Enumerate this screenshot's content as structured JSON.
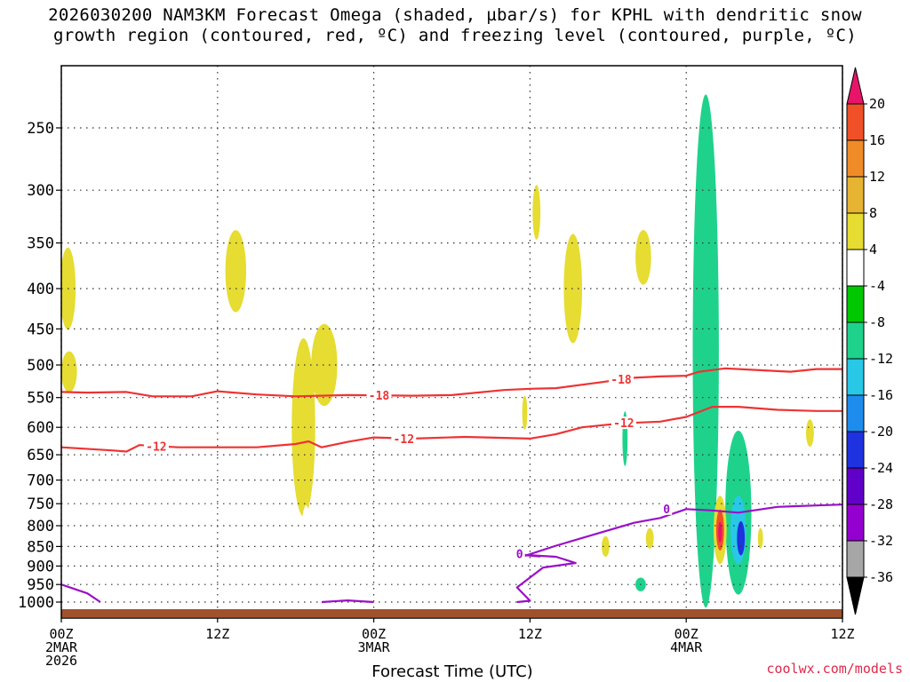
{
  "title": {
    "line1": "2026030200 NAM3KM Forecast Omega (shaded, µbar/s) for KPHL with dendritic snow",
    "line2": "growth region (contoured, red, ºC) and freezing level (contoured, purple, ºC)"
  },
  "credit": "coolwx.com/models",
  "colors": {
    "dgz": "#ee3333",
    "freezing": "#9a10c8",
    "ground": "#a0522d",
    "grid": "#333333"
  },
  "chart_data": {
    "type": "heatmap",
    "title": "2026030200 NAM3KM Forecast Omega (shaded, µbar/s) for KPHL with dendritic snow growth region (contoured, red, ºC) and freezing level (contoured, purple, ºC)",
    "xlabel": "Forecast Time (UTC)",
    "ylabel": "",
    "x_unit": "forecast hour",
    "xlim": [
      0,
      60
    ],
    "y_unit": "hPa",
    "ylim": [
      1000,
      200
    ],
    "y_scale": "log",
    "y_ticks": [
      250,
      300,
      350,
      400,
      450,
      500,
      550,
      600,
      650,
      700,
      750,
      800,
      850,
      900,
      950,
      1000
    ],
    "x_ticks": [
      {
        "hour": 0,
        "lines": [
          "00Z",
          "2MAR",
          "2026"
        ]
      },
      {
        "hour": 12,
        "lines": [
          "12Z"
        ]
      },
      {
        "hour": 24,
        "lines": [
          "00Z",
          "3MAR"
        ]
      },
      {
        "hour": 36,
        "lines": [
          "12Z"
        ]
      },
      {
        "hour": 48,
        "lines": [
          "00Z",
          "4MAR"
        ]
      },
      {
        "hour": 60,
        "lines": [
          "12Z"
        ]
      }
    ],
    "grid": true,
    "colorbar": {
      "levels": [
        -36,
        -32,
        -28,
        -24,
        -20,
        -16,
        -12,
        -8,
        -4,
        4,
        8,
        12,
        16,
        20
      ],
      "colors": [
        "#a6a6a6",
        "#9400d0",
        "#6000c8",
        "#1e32e0",
        "#1e8ced",
        "#28c8e6",
        "#1ed28c",
        "#00c800",
        "#ffffff",
        "#e6dc32",
        "#e6b432",
        "#f08c28",
        "#f05028",
        "#e8146a"
      ]
    },
    "series": [
      {
        "name": "dendritic snow growth region",
        "kind": "contour",
        "level_labels": [
          "-18",
          "-12"
        ],
        "lines": [
          {
            "level": -18,
            "points": [
              [
                0,
                541
              ],
              [
                2,
                542
              ],
              [
                5,
                541
              ],
              [
                7,
                548
              ],
              [
                10,
                548
              ],
              [
                12,
                540
              ],
              [
                15,
                545
              ],
              [
                18,
                548
              ],
              [
                22,
                546
              ],
              [
                27,
                547
              ],
              [
                30,
                546
              ],
              [
                34,
                538
              ],
              [
                36,
                536
              ],
              [
                38,
                535
              ],
              [
                41,
                527
              ],
              [
                44,
                519
              ],
              [
                46,
                517
              ],
              [
                48,
                516
              ],
              [
                49,
                510
              ],
              [
                51,
                505
              ],
              [
                53,
                507
              ],
              [
                56,
                510
              ],
              [
                58,
                506
              ],
              [
                60,
                506
              ]
            ],
            "labels": [
              [
                24.4,
                546
              ],
              [
                43.0,
                521
              ]
            ]
          },
          {
            "level": -12,
            "points": [
              [
                0,
                636
              ],
              [
                4,
                642
              ],
              [
                5,
                644
              ],
              [
                6,
                632
              ],
              [
                9,
                636
              ],
              [
                12,
                636
              ],
              [
                15,
                636
              ],
              [
                18,
                630
              ],
              [
                19,
                625
              ],
              [
                20,
                636
              ],
              [
                22,
                626
              ],
              [
                24,
                618
              ],
              [
                27,
                620
              ],
              [
                31,
                617
              ],
              [
                36,
                620
              ],
              [
                38,
                612
              ],
              [
                40,
                600
              ],
              [
                43,
                593
              ],
              [
                46,
                590
              ],
              [
                48,
                582
              ],
              [
                50,
                565
              ],
              [
                52,
                565
              ],
              [
                55,
                570
              ],
              [
                58,
                572
              ],
              [
                60,
                572
              ]
            ],
            "labels": [
              [
                7.3,
                634
              ],
              [
                26.3,
                620
              ],
              [
                43.2,
                592
              ]
            ]
          }
        ]
      },
      {
        "name": "freezing level",
        "kind": "contour",
        "level_labels": [
          "0"
        ],
        "lines": [
          {
            "level": 0,
            "points": [
              [
                0,
                950
              ],
              [
                2,
                975
              ],
              [
                3,
                1000
              ]
            ],
            "labels": []
          },
          {
            "level": 0,
            "points": [
              [
                20,
                1000
              ],
              [
                22,
                995
              ],
              [
                24,
                1000
              ]
            ],
            "labels": []
          },
          {
            "level": 0,
            "points": [
              [
                35,
                880
              ],
              [
                38,
                848
              ],
              [
                41,
                820
              ],
              [
                44,
                793
              ],
              [
                46,
                782
              ],
              [
                48,
                762
              ],
              [
                50,
                765
              ],
              [
                52,
                770
              ],
              [
                55,
                757
              ],
              [
                58,
                754
              ],
              [
                60,
                752
              ]
            ],
            "labels": [
              [
                46.5,
                761
              ]
            ]
          },
          {
            "level": 0,
            "points": [
              [
                35,
                870
              ],
              [
                38,
                876
              ],
              [
                39.5,
                892
              ],
              [
                37,
                904
              ],
              [
                35,
                958
              ],
              [
                36,
                996
              ],
              [
                35,
                1000
              ]
            ],
            "labels": []
          },
          {
            "level": 0,
            "points": [
              [
                35,
                870
              ],
              [
                36.8,
                875
              ]
            ],
            "labels": [
              [
                35.2,
                868
              ]
            ]
          }
        ]
      },
      {
        "name": "omega",
        "kind": "filled",
        "cells": [
          {
            "level": -4,
            "x": 8.2,
            "p": 330,
            "w": 1.0,
            "h": 0.18
          },
          {
            "level": 4,
            "x": 13.4,
            "p": 380,
            "w": 0.8,
            "h": 0.12
          },
          {
            "level": -4,
            "x": 14.9,
            "p": 460,
            "w": 0.4,
            "h": 0.1
          },
          {
            "level": 4,
            "x": 0.5,
            "p": 400,
            "w": 0.6,
            "h": 0.12
          },
          {
            "level": 4,
            "x": 0.6,
            "p": 510,
            "w": 0.6,
            "h": 0.06
          },
          {
            "level": -4,
            "x": 18.3,
            "p": 410,
            "w": 1.3,
            "h": 0.32
          },
          {
            "level": -4,
            "x": 21.5,
            "p": 400,
            "w": 0.5,
            "h": 0.08
          },
          {
            "level": 4,
            "x": 20.2,
            "p": 500,
            "w": 1.0,
            "h": 0.12
          },
          {
            "level": 4,
            "x": 18.6,
            "p": 600,
            "w": 0.9,
            "h": 0.26
          },
          {
            "level": -4,
            "x": 18.8,
            "p": 850,
            "w": 0.4,
            "h": 0.12
          },
          {
            "level": -4,
            "x": 23.5,
            "p": 980,
            "w": 1.2,
            "h": 0.05
          },
          {
            "level": 4,
            "x": 36.5,
            "p": 320,
            "w": 0.3,
            "h": 0.08
          },
          {
            "level": 4,
            "x": 39.3,
            "p": 400,
            "w": 0.7,
            "h": 0.16
          },
          {
            "level": -4,
            "x": 42.2,
            "p": 400,
            "w": 0.5,
            "h": 0.12
          },
          {
            "level": 4,
            "x": 44.7,
            "p": 365,
            "w": 0.6,
            "h": 0.08
          },
          {
            "level": 4,
            "x": 35.6,
            "p": 575,
            "w": 0.2,
            "h": 0.05
          },
          {
            "level": -4,
            "x": 42.0,
            "p": 560,
            "w": 0.7,
            "h": 0.2
          },
          {
            "level": -4,
            "x": 43.3,
            "p": 600,
            "w": 0.7,
            "h": 0.2
          },
          {
            "level": -12,
            "x": 43.3,
            "p": 620,
            "w": 0.2,
            "h": 0.08
          },
          {
            "level": -4,
            "x": 45.5,
            "p": 630,
            "w": 0.5,
            "h": 0.1
          },
          {
            "level": -4,
            "x": 36.2,
            "p": 760,
            "w": 1.6,
            "h": 0.12
          },
          {
            "level": -4,
            "x": 39.3,
            "p": 840,
            "w": 1.2,
            "h": 0.05
          },
          {
            "level": -4,
            "x": 37.0,
            "p": 950,
            "w": 1.7,
            "h": 0.05
          },
          {
            "level": 4,
            "x": 41.8,
            "p": 850,
            "w": 0.3,
            "h": 0.03
          },
          {
            "level": 4,
            "x": 45.2,
            "p": 830,
            "w": 0.3,
            "h": 0.03
          },
          {
            "level": -4,
            "x": 45.0,
            "p": 950,
            "w": 2.4,
            "h": 0.05
          },
          {
            "level": -12,
            "x": 44.5,
            "p": 950,
            "w": 0.4,
            "h": 0.02
          },
          {
            "level": -4,
            "x": 49.3,
            "p": 470,
            "w": 1.4,
            "h": 0.95
          },
          {
            "level": -12,
            "x": 49.5,
            "p": 480,
            "w": 1.0,
            "h": 0.75
          },
          {
            "level": -4,
            "x": 52.0,
            "p": 780,
            "w": 1.5,
            "h": 0.28
          },
          {
            "level": -12,
            "x": 52.0,
            "p": 770,
            "w": 1.0,
            "h": 0.24
          },
          {
            "level": -16,
            "x": 52.0,
            "p": 810,
            "w": 0.6,
            "h": 0.1
          },
          {
            "level": -24,
            "x": 52.2,
            "p": 830,
            "w": 0.3,
            "h": 0.05
          },
          {
            "level": 4,
            "x": 50.6,
            "p": 810,
            "w": 0.5,
            "h": 0.1
          },
          {
            "level": 16,
            "x": 50.6,
            "p": 810,
            "w": 0.3,
            "h": 0.06
          },
          {
            "level": 20,
            "x": 50.6,
            "p": 815,
            "w": 0.15,
            "h": 0.03
          },
          {
            "level": 4,
            "x": 53.7,
            "p": 830,
            "w": 0.2,
            "h": 0.03
          },
          {
            "level": 4,
            "x": 57.5,
            "p": 610,
            "w": 0.3,
            "h": 0.04
          },
          {
            "level": -4,
            "x": 60.0,
            "p": 740,
            "w": 0.2,
            "h": 0.03
          }
        ]
      }
    ]
  }
}
